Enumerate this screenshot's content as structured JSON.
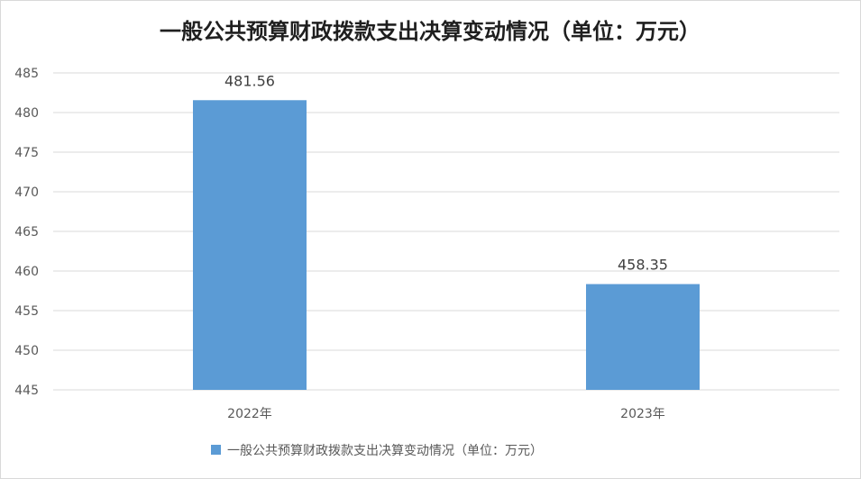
{
  "chart_data": {
    "type": "bar",
    "title": "一般公共预算财政拨款支出决算变动情况（单位：万元）",
    "categories": [
      "2022年",
      "2023年"
    ],
    "series": [
      {
        "name": "一般公共预算财政拨款支出决算变动情况（单位：万元）",
        "values": [
          481.56,
          458.35
        ],
        "labels": [
          "481.56",
          "458.35"
        ]
      }
    ],
    "ylim": [
      445,
      485
    ],
    "yticks": [
      "445",
      "450",
      "455",
      "460",
      "465",
      "470",
      "475",
      "480",
      "485"
    ],
    "grid": true,
    "legend_position": "bottom",
    "colors": {
      "bar": "#5b9bd5",
      "grid": "#d9d9d9",
      "text": "#595959"
    }
  }
}
